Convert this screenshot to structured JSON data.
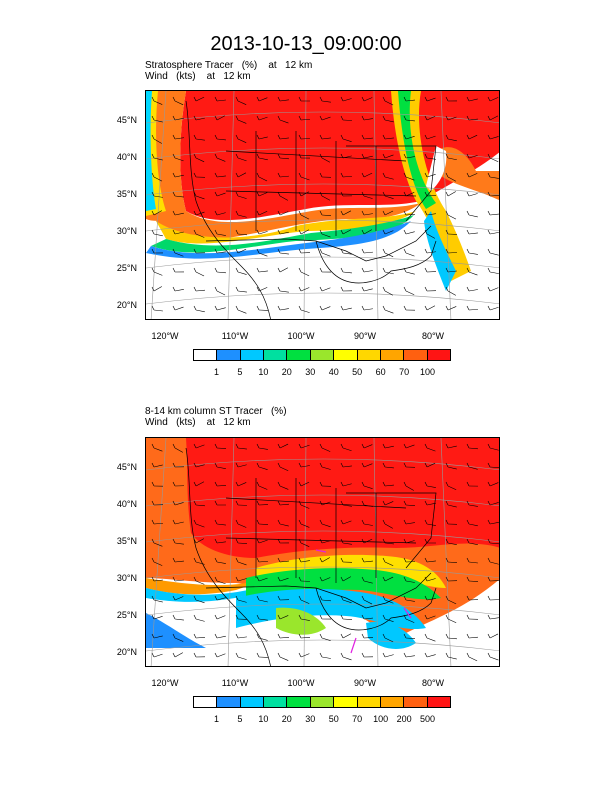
{
  "title": "2013-10-13_09:00:00",
  "panels": [
    {
      "line1": "Stratosphere Tracer   (%)    at   12 km",
      "line2": "Wind   (kts)    at   12 km",
      "lat_labels": [
        "45°N",
        "40°N",
        "35°N",
        "30°N",
        "25°N",
        "20°N"
      ],
      "lon_labels": [
        "120°W",
        "110°W",
        "100°W",
        "90°W",
        "80°W"
      ],
      "colorbar_labels": [
        "1",
        "5",
        "10",
        "20",
        "30",
        "40",
        "50",
        "60",
        "70",
        "100"
      ],
      "colorbar_colors": [
        "#ffffff",
        "#1e90ff",
        "#00c8ff",
        "#00e0a0",
        "#00e040",
        "#9ae62c",
        "#ffff00",
        "#ffd700",
        "#ffa500",
        "#ff6010",
        "#ff1414"
      ]
    },
    {
      "line1": "8-14 km column ST Tracer   (%)",
      "line2": "Wind   (kts)    at   12 km",
      "lat_labels": [
        "45°N",
        "40°N",
        "35°N",
        "30°N",
        "25°N",
        "20°N"
      ],
      "lon_labels": [
        "120°W",
        "110°W",
        "100°W",
        "90°W",
        "80°W"
      ],
      "colorbar_labels": [
        "1",
        "5",
        "10",
        "20",
        "30",
        "50",
        "70",
        "100",
        "200",
        "500"
      ],
      "colorbar_colors": [
        "#ffffff",
        "#1e90ff",
        "#00c8ff",
        "#00e0a0",
        "#00e040",
        "#9ae62c",
        "#ffff00",
        "#ffd700",
        "#ffa500",
        "#ff6010",
        "#ff1414"
      ]
    }
  ]
}
